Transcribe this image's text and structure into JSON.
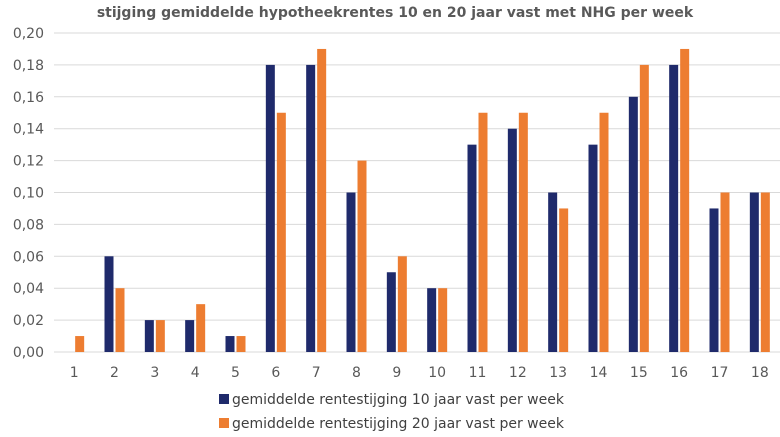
{
  "chart_data": {
    "type": "bar",
    "title": "stijging gemiddelde hypotheekrentes 10 en 20 jaar vast met NHG per week",
    "xlabel": "",
    "ylabel": "",
    "categories": [
      "1",
      "2",
      "3",
      "4",
      "5",
      "6",
      "7",
      "8",
      "9",
      "10",
      "11",
      "12",
      "13",
      "14",
      "15",
      "16",
      "17",
      "18"
    ],
    "ylim": [
      0,
      0.2
    ],
    "yticks": [
      "0,00",
      "0,02",
      "0,04",
      "0,06",
      "0,08",
      "0,10",
      "0,12",
      "0,14",
      "0,16",
      "0,18",
      "0,20"
    ],
    "ytick_values": [
      0,
      0.02,
      0.04,
      0.06,
      0.08,
      0.1,
      0.12,
      0.14,
      0.16,
      0.18,
      0.2
    ],
    "grid": true,
    "legend_position": "bottom",
    "series": [
      {
        "name": "gemiddelde rentestijging 10 jaar vast per week",
        "color": "#1f2a6b",
        "values": [
          0,
          0.06,
          0.02,
          0.02,
          0.01,
          0.18,
          0.18,
          0.1,
          0.05,
          0.04,
          0.13,
          0.14,
          0.1,
          0.13,
          0.16,
          0.18,
          0.09,
          0.1
        ]
      },
      {
        "name": "gemiddelde rentestijging 20 jaar vast per week",
        "color": "#ed7d31",
        "values": [
          0.01,
          0.04,
          0.02,
          0.03,
          0.01,
          0.15,
          0.19,
          0.12,
          0.06,
          0.04,
          0.15,
          0.15,
          0.09,
          0.15,
          0.18,
          0.19,
          0.1,
          0.1
        ]
      }
    ]
  }
}
